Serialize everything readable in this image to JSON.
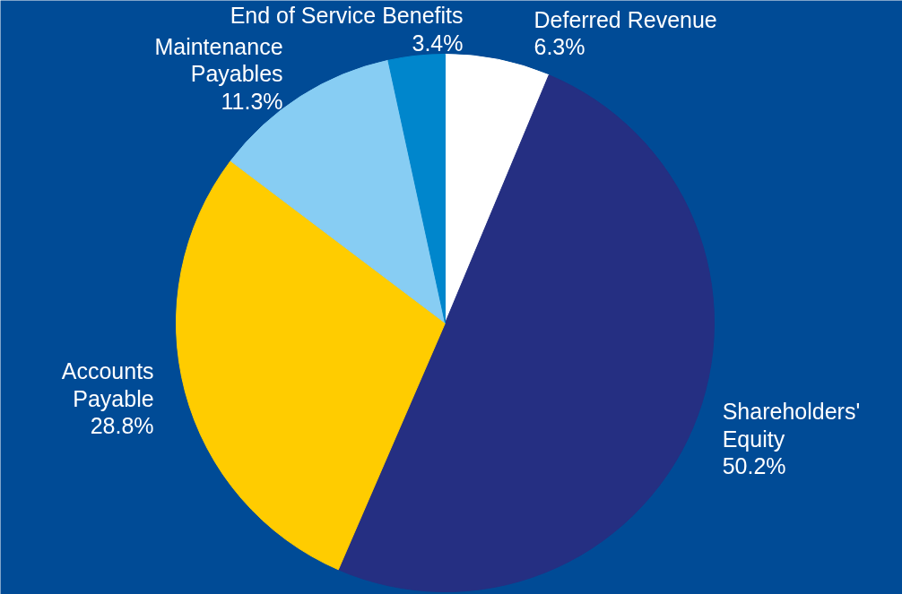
{
  "chart_data": {
    "type": "pie",
    "categories": [
      "Deferred Revenue",
      "Shareholders'\nEquity",
      "Accounts\nPayable",
      "Maintenance\nPayables",
      "End of Service Benefits"
    ],
    "values": [
      6.3,
      50.2,
      28.8,
      11.3,
      3.4
    ],
    "colors": [
      "#ffffff",
      "#252f82",
      "#ffcc00",
      "#87cdf3",
      "#0086cc"
    ],
    "value_labels": [
      "6.3%",
      "50.2%",
      "28.8%",
      "11.3%",
      "3.4%"
    ]
  }
}
